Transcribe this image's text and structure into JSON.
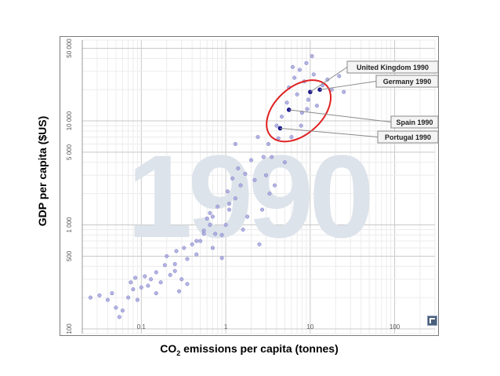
{
  "chart_data": {
    "type": "scatter",
    "watermark": "1990",
    "xlabel_main": "CO",
    "xlabel_sub": "2",
    "xlabel_rest": " emissions per capita (tonnes)",
    "ylabel": "GDP per capita ($US)",
    "xscale": "log",
    "yscale": "log",
    "xlim": [
      0.02,
      300
    ],
    "ylim": [
      90,
      60000
    ],
    "x_ticks": [
      {
        "value": 0.1,
        "label": "0.1"
      },
      {
        "value": 1,
        "label": "1"
      },
      {
        "value": 10,
        "label": "10"
      },
      {
        "value": 100,
        "label": "100"
      }
    ],
    "y_ticks": [
      {
        "value": 100,
        "label": "100"
      },
      {
        "value": 500,
        "label": "500"
      },
      {
        "value": 1000,
        "label": "1 000"
      },
      {
        "value": 5000,
        "label": "5 000"
      },
      {
        "value": 10000,
        "label": "10 000"
      },
      {
        "value": 50000,
        "label": "50 000"
      }
    ],
    "grid": true,
    "colors": {
      "point": "#a6a6de",
      "point_stroke": "#7f7fc4",
      "highlight": "#1a1a8c",
      "watermark": "#dde3ea",
      "ellipse": "#e02020",
      "grid_major": "#c8c8c8",
      "grid_minor": "#ececec"
    },
    "highlighted": [
      {
        "name": "United Kingdom 1990",
        "x": 10.0,
        "y": 19000
      },
      {
        "name": "Germany 1990",
        "x": 13.0,
        "y": 20000
      },
      {
        "name": "Spain 1990",
        "x": 5.6,
        "y": 12800
      },
      {
        "name": "Portugal 1990",
        "x": 4.4,
        "y": 8500
      }
    ],
    "points": [
      [
        0.025,
        200
      ],
      [
        0.032,
        210
      ],
      [
        0.04,
        190
      ],
      [
        0.045,
        220
      ],
      [
        0.05,
        160
      ],
      [
        0.055,
        130
      ],
      [
        0.06,
        150
      ],
      [
        0.07,
        200
      ],
      [
        0.075,
        280
      ],
      [
        0.08,
        240
      ],
      [
        0.085,
        310
      ],
      [
        0.09,
        190
      ],
      [
        0.1,
        250
      ],
      [
        0.11,
        320
      ],
      [
        0.12,
        260
      ],
      [
        0.13,
        300
      ],
      [
        0.15,
        350
      ],
      [
        0.17,
        280
      ],
      [
        0.19,
        410
      ],
      [
        0.2,
        500
      ],
      [
        0.22,
        330
      ],
      [
        0.25,
        420
      ],
      [
        0.26,
        560
      ],
      [
        0.28,
        230
      ],
      [
        0.3,
        300
      ],
      [
        0.32,
        600
      ],
      [
        0.35,
        470
      ],
      [
        0.4,
        650
      ],
      [
        0.45,
        520
      ],
      [
        0.5,
        700
      ],
      [
        0.55,
        880
      ],
      [
        0.6,
        1150
      ],
      [
        0.65,
        1300
      ],
      [
        0.7,
        600
      ],
      [
        0.75,
        820
      ],
      [
        0.8,
        1500
      ],
      [
        0.9,
        480
      ],
      [
        1.0,
        1000
      ],
      [
        1.05,
        2100
      ],
      [
        1.1,
        1600
      ],
      [
        1.2,
        2800
      ],
      [
        1.3,
        1800
      ],
      [
        1.4,
        3500
      ],
      [
        1.5,
        2400
      ],
      [
        1.6,
        900
      ],
      [
        1.7,
        3100
      ],
      [
        1.8,
        1200
      ],
      [
        2.0,
        4200
      ],
      [
        2.2,
        2700
      ],
      [
        2.5,
        650
      ],
      [
        2.7,
        1400
      ],
      [
        3.0,
        3000
      ],
      [
        3.2,
        6000
      ],
      [
        3.5,
        4500
      ],
      [
        3.8,
        2400
      ],
      [
        4.0,
        9000
      ],
      [
        4.2,
        6800
      ],
      [
        4.6,
        11000
      ],
      [
        5.0,
        4000
      ],
      [
        5.3,
        15000
      ],
      [
        5.6,
        21000
      ],
      [
        6.0,
        7000
      ],
      [
        6.5,
        26000
      ],
      [
        7.0,
        18000
      ],
      [
        7.5,
        31000
      ],
      [
        8.0,
        12000
      ],
      [
        8.5,
        24000
      ],
      [
        9.0,
        36000
      ],
      [
        9.5,
        16000
      ],
      [
        11.0,
        28000
      ],
      [
        12.0,
        14000
      ],
      [
        14.0,
        22000
      ],
      [
        16.0,
        25000
      ],
      [
        18.0,
        20000
      ],
      [
        22.0,
        27000
      ],
      [
        25.0,
        19000
      ],
      [
        1.1,
        1400
      ],
      [
        0.65,
        1000
      ],
      [
        0.7,
        1200
      ],
      [
        0.45,
        700
      ],
      [
        0.55,
        820
      ],
      [
        0.25,
        360
      ],
      [
        0.15,
        220
      ],
      [
        1.3,
        6000
      ],
      [
        0.9,
        800
      ],
      [
        2.8,
        4500
      ],
      [
        3.3,
        2000
      ],
      [
        6.2,
        33000
      ],
      [
        7.8,
        9000
      ],
      [
        9.2,
        13000
      ],
      [
        10.5,
        42000
      ],
      [
        2.4,
        7000
      ],
      [
        0.35,
        270
      ]
    ]
  }
}
